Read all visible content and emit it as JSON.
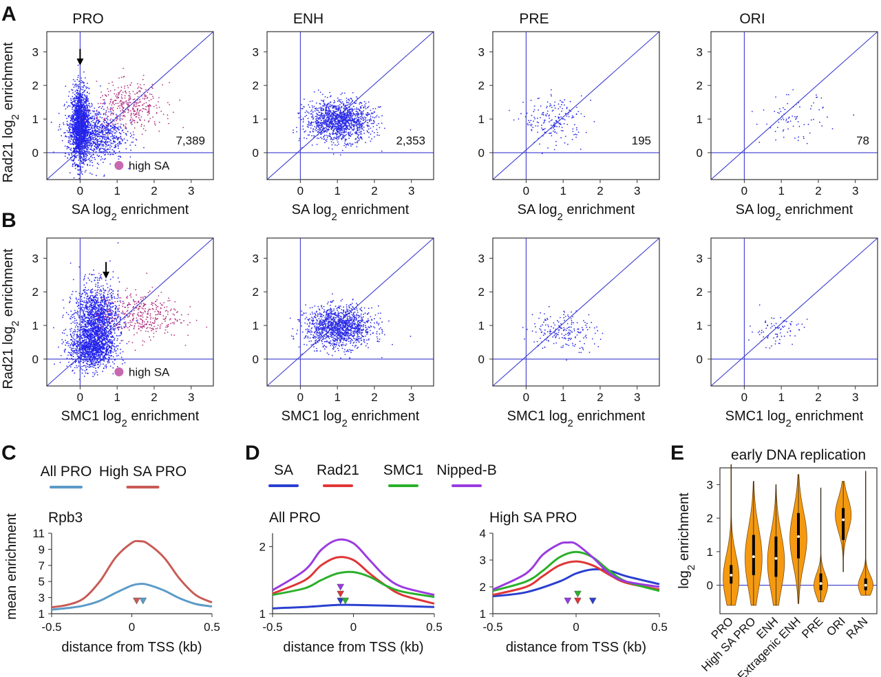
{
  "panel_labels": [
    "A",
    "B",
    "C",
    "D",
    "E"
  ],
  "chart_data": [
    {
      "type": "scatter",
      "panel": "A",
      "title": "PRO",
      "xlabel": "SA log2 enrichment",
      "ylabel": "Rad21 log2 enrichment",
      "count_label": "7,389",
      "legend": "high SA",
      "xlim": [
        -0.9,
        3.6
      ],
      "ylim": [
        -0.8,
        3.6
      ],
      "xticks": [
        "0",
        "1",
        "2",
        "3"
      ],
      "yticks": [
        "0",
        "1",
        "2",
        "3"
      ],
      "arrow_at": [
        0,
        2.8
      ],
      "clusters": [
        {
          "cx": 0,
          "cy": 0.8,
          "sx": 0.12,
          "sy": 0.55,
          "n": 1800,
          "color": "#2222ee"
        },
        {
          "cx": 0.4,
          "cy": 0.55,
          "sx": 0.4,
          "sy": 0.4,
          "n": 900,
          "color": "#2222ee"
        },
        {
          "cx": 1.35,
          "cy": 1.35,
          "sx": 0.45,
          "sy": 0.35,
          "n": 380,
          "color": "#b03080"
        }
      ]
    },
    {
      "type": "scatter",
      "panel": "A",
      "title": "ENH",
      "xlabel": "SA log2 enrichment",
      "ylabel": "",
      "count_label": "2,353",
      "xlim": [
        -0.9,
        3.6
      ],
      "ylim": [
        -0.8,
        3.6
      ],
      "xticks": [
        "0",
        "1",
        "2",
        "3"
      ],
      "yticks": [
        "0",
        "1",
        "2",
        "3"
      ],
      "clusters": [
        {
          "cx": 1.05,
          "cy": 0.95,
          "sx": 0.45,
          "sy": 0.3,
          "n": 1400,
          "color": "#2a2ae8"
        }
      ]
    },
    {
      "type": "scatter",
      "panel": "A",
      "title": "PRE",
      "xlabel": "SA log2 enrichment",
      "ylabel": "",
      "count_label": "195",
      "xlim": [
        -0.9,
        3.6
      ],
      "ylim": [
        -0.8,
        3.6
      ],
      "xticks": [
        "0",
        "1",
        "2",
        "3"
      ],
      "yticks": [
        "0",
        "1",
        "2",
        "3"
      ],
      "clusters": [
        {
          "cx": 0.75,
          "cy": 0.95,
          "sx": 0.4,
          "sy": 0.35,
          "n": 195,
          "color": "#2a2ae8"
        }
      ]
    },
    {
      "type": "scatter",
      "panel": "A",
      "title": "ORI",
      "xlabel": "SA log2 enrichment",
      "ylabel": "",
      "count_label": "78",
      "xlim": [
        -0.9,
        3.6
      ],
      "ylim": [
        -0.8,
        3.6
      ],
      "xticks": [
        "0",
        "1",
        "2",
        "3"
      ],
      "yticks": [
        "0",
        "1",
        "2",
        "3"
      ],
      "clusters": [
        {
          "cx": 1.35,
          "cy": 1.0,
          "sx": 0.45,
          "sy": 0.35,
          "n": 78,
          "color": "#2a2ae8"
        }
      ]
    },
    {
      "type": "scatter",
      "panel": "B",
      "title": "",
      "xlabel": "SMC1 log2 enrichment",
      "ylabel": "Rad21 log2 enrichment",
      "legend": "high SA",
      "xlim": [
        -0.9,
        3.6
      ],
      "ylim": [
        -0.8,
        3.6
      ],
      "xticks": [
        "0",
        "1",
        "2",
        "3"
      ],
      "yticks": [
        "0",
        "1",
        "2",
        "3"
      ],
      "arrow_at": [
        0.7,
        2.6
      ],
      "clusters": [
        {
          "cx": 0.45,
          "cy": 1.1,
          "sx": 0.3,
          "sy": 0.55,
          "n": 1600,
          "color": "#2222ee"
        },
        {
          "cx": 0.3,
          "cy": 0.3,
          "sx": 0.3,
          "sy": 0.3,
          "n": 900,
          "color": "#2222ee"
        },
        {
          "cx": 1.6,
          "cy": 1.3,
          "sx": 0.55,
          "sy": 0.35,
          "n": 380,
          "color": "#b03080"
        }
      ]
    },
    {
      "type": "scatter",
      "panel": "B",
      "title": "",
      "xlabel": "SMC1 log2 enrichment",
      "ylabel": "",
      "xlim": [
        -0.9,
        3.6
      ],
      "ylim": [
        -0.8,
        3.6
      ],
      "xticks": [
        "0",
        "1",
        "2",
        "3"
      ],
      "yticks": [
        "0",
        "1",
        "2",
        "3"
      ],
      "clusters": [
        {
          "cx": 1.05,
          "cy": 0.95,
          "sx": 0.45,
          "sy": 0.3,
          "n": 1400,
          "color": "#2a2ae8"
        }
      ]
    },
    {
      "type": "scatter",
      "panel": "B",
      "title": "",
      "xlabel": "SMC1 log2 enrichment",
      "ylabel": "",
      "xlim": [
        -0.9,
        3.6
      ],
      "ylim": [
        -0.8,
        3.6
      ],
      "xticks": [
        "0",
        "1",
        "2",
        "3"
      ],
      "yticks": [
        "0",
        "1",
        "2",
        "3"
      ],
      "clusters": [
        {
          "cx": 1.0,
          "cy": 0.85,
          "sx": 0.45,
          "sy": 0.3,
          "n": 195,
          "color": "#2a2ae8"
        }
      ]
    },
    {
      "type": "scatter",
      "panel": "B",
      "title": "",
      "xlabel": "SMC1 log2 enrichment",
      "ylabel": "",
      "xlim": [
        -0.9,
        3.6
      ],
      "ylim": [
        -0.8,
        3.6
      ],
      "xticks": [
        "0",
        "1",
        "2",
        "3"
      ],
      "yticks": [
        "0",
        "1",
        "2",
        "3"
      ],
      "clusters": [
        {
          "cx": 0.85,
          "cy": 0.85,
          "sx": 0.35,
          "sy": 0.25,
          "n": 78,
          "color": "#2a2ae8"
        }
      ]
    },
    {
      "type": "line",
      "panel": "C",
      "title": "Rpb3",
      "xlabel": "distance from TSS (kb)",
      "ylabel": "mean enrichment",
      "xlim": [
        -0.5,
        0.5
      ],
      "ylim": [
        1,
        11
      ],
      "xticks": [
        "-0.5",
        "0",
        "0.5"
      ],
      "yticks": [
        "1",
        "3",
        "5",
        "7",
        "9",
        "11"
      ],
      "series": [
        {
          "name": "All PRO",
          "color": "#5b9bc8",
          "x": [
            -0.5,
            -0.4,
            -0.3,
            -0.2,
            -0.1,
            0,
            0.05,
            0.1,
            0.2,
            0.3,
            0.4,
            0.5
          ],
          "y": [
            1.5,
            1.7,
            2.0,
            2.6,
            3.6,
            4.5,
            4.7,
            4.6,
            3.9,
            2.9,
            2.2,
            1.9
          ],
          "peak": 0.07
        },
        {
          "name": "High SA PRO",
          "color": "#c85b55",
          "x": [
            -0.5,
            -0.4,
            -0.3,
            -0.2,
            -0.1,
            0,
            0.05,
            0.1,
            0.2,
            0.3,
            0.4,
            0.5
          ],
          "y": [
            1.8,
            2.1,
            2.9,
            5.0,
            8.0,
            9.8,
            10.0,
            9.7,
            8.0,
            5.3,
            3.3,
            2.4
          ],
          "peak": 0.03
        }
      ]
    },
    {
      "type": "line",
      "panel": "D",
      "title": "All PRO",
      "xlabel": "distance from TSS (kb)",
      "ylabel": "",
      "xlim": [
        -0.5,
        0.5
      ],
      "ylim": [
        1,
        2.2
      ],
      "xticks": [
        "-0.5",
        "0",
        "0.5"
      ],
      "yticks": [
        "1",
        "2"
      ],
      "series": [
        {
          "name": "SA",
          "color": "#2a3fd0",
          "x": [
            -0.5,
            -0.3,
            -0.1,
            0,
            0.2,
            0.5
          ],
          "y": [
            1.08,
            1.1,
            1.13,
            1.13,
            1.12,
            1.1
          ],
          "peak": -0.08
        },
        {
          "name": "Rad21",
          "color": "#e03535",
          "x": [
            -0.5,
            -0.3,
            -0.2,
            -0.1,
            0,
            0.1,
            0.2,
            0.3,
            0.5
          ],
          "y": [
            1.3,
            1.5,
            1.72,
            1.84,
            1.8,
            1.6,
            1.42,
            1.28,
            1.15
          ],
          "peak": -0.08
        },
        {
          "name": "SMC1",
          "color": "#2ab02a",
          "x": [
            -0.5,
            -0.3,
            -0.2,
            -0.1,
            0,
            0.1,
            0.2,
            0.3,
            0.5
          ],
          "y": [
            1.28,
            1.38,
            1.5,
            1.6,
            1.62,
            1.55,
            1.42,
            1.33,
            1.25
          ],
          "peak": -0.05
        },
        {
          "name": "Nipped-B",
          "color": "#9a3ae0",
          "x": [
            -0.5,
            -0.3,
            -0.2,
            -0.1,
            0,
            0.1,
            0.2,
            0.3,
            0.5
          ],
          "y": [
            1.35,
            1.65,
            1.95,
            2.1,
            2.05,
            1.8,
            1.55,
            1.4,
            1.28
          ],
          "peak": -0.08
        }
      ]
    },
    {
      "type": "line",
      "panel": "D",
      "title": "High SA PRO",
      "xlabel": "distance from TSS (kb)",
      "ylabel": "",
      "xlim": [
        -0.5,
        0.5
      ],
      "ylim": [
        1,
        4
      ],
      "xticks": [
        "-0.5",
        "0",
        "0.5"
      ],
      "yticks": [
        "1",
        "2",
        "3",
        "4"
      ],
      "series": [
        {
          "name": "SA",
          "color": "#2a3fd0",
          "x": [
            -0.5,
            -0.3,
            -0.1,
            0,
            0.1,
            0.2,
            0.3,
            0.5
          ],
          "y": [
            1.65,
            1.8,
            2.2,
            2.5,
            2.65,
            2.6,
            2.4,
            2.1
          ],
          "peak": 0.1
        },
        {
          "name": "Rad21",
          "color": "#e03535",
          "x": [
            -0.5,
            -0.3,
            -0.2,
            -0.1,
            0,
            0.1,
            0.2,
            0.3,
            0.5
          ],
          "y": [
            1.7,
            2.0,
            2.4,
            2.8,
            2.95,
            2.8,
            2.45,
            2.15,
            1.9
          ],
          "peak": 0.01
        },
        {
          "name": "SMC1",
          "color": "#2ab02a",
          "x": [
            -0.5,
            -0.3,
            -0.2,
            -0.1,
            0,
            0.1,
            0.2,
            0.3,
            0.5
          ],
          "y": [
            1.85,
            2.2,
            2.6,
            3.1,
            3.3,
            3.1,
            2.6,
            2.2,
            1.85
          ],
          "peak": 0.01
        },
        {
          "name": "Nipped-B",
          "color": "#9a3ae0",
          "x": [
            -0.5,
            -0.3,
            -0.2,
            -0.1,
            -0.05,
            0,
            0.1,
            0.2,
            0.3,
            0.5
          ],
          "y": [
            1.9,
            2.5,
            3.2,
            3.6,
            3.65,
            3.6,
            3.1,
            2.5,
            2.2,
            2.0
          ],
          "peak": -0.05
        }
      ]
    },
    {
      "type": "violin",
      "panel": "E",
      "title": "early DNA replication",
      "xlabel": "",
      "ylabel": "log2 enrichment",
      "ylim": [
        -0.85,
        3.5
      ],
      "yticks": [
        "0",
        "1",
        "2",
        "3"
      ],
      "color": "#f59a10",
      "categories": [
        "PRO",
        "High SA PRO",
        "ENH",
        "Extragenic ENH",
        "PRE",
        "ORI",
        "RAN"
      ],
      "violins": [
        {
          "min": -0.6,
          "max": 3.6,
          "median": 0.3,
          "q1": 0.05,
          "q3": 0.6,
          "peak": 0.2,
          "spread": 0.7,
          "width": 0.75
        },
        {
          "min": -0.6,
          "max": 3.1,
          "median": 0.85,
          "q1": 0.3,
          "q3": 1.5,
          "peak": 0.8,
          "spread": 0.9,
          "width": 0.8
        },
        {
          "min": -0.6,
          "max": 3.0,
          "median": 0.8,
          "q1": 0.25,
          "q3": 1.45,
          "peak": 0.7,
          "spread": 0.85,
          "width": 0.8
        },
        {
          "min": -0.55,
          "max": 3.3,
          "median": 1.45,
          "q1": 0.8,
          "q3": 2.15,
          "peak": 1.4,
          "spread": 0.8,
          "width": 0.8
        },
        {
          "min": -0.5,
          "max": 2.9,
          "median": 0.05,
          "q1": -0.15,
          "q3": 0.35,
          "peak": 0.0,
          "spread": 0.35,
          "width": 0.65
        },
        {
          "min": 0.4,
          "max": 3.1,
          "median": 1.95,
          "q1": 1.35,
          "q3": 2.3,
          "peak": 2.1,
          "spread": 0.5,
          "width": 0.75
        },
        {
          "min": -0.3,
          "max": 3.4,
          "median": 0.0,
          "q1": -0.15,
          "q3": 0.2,
          "peak": 0.0,
          "spread": 0.3,
          "width": 0.7
        }
      ]
    }
  ]
}
